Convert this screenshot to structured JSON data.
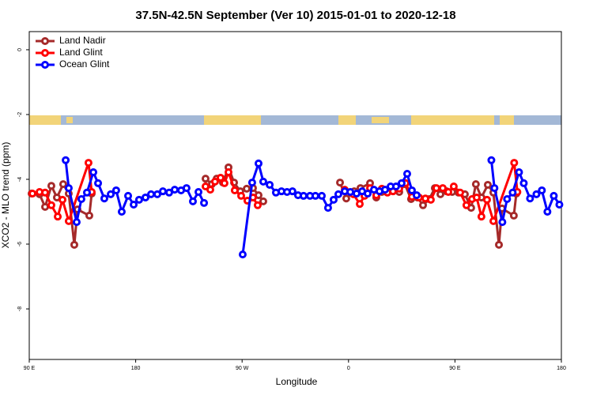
{
  "chart_data": {
    "type": "line",
    "title": "37.5N-42.5N September (Ver 10)   2015-01-01 to 2020-12-18",
    "x_label": "Longitude",
    "y_label": "XCO2 - MLO trend (ppm)",
    "xlim": [
      90,
      540
    ],
    "ylim": [
      -9.56,
      0.56
    ],
    "xticks": [
      {
        "value": 90,
        "label": "90 E"
      },
      {
        "value": 180,
        "label": "180"
      },
      {
        "value": 270,
        "label": "90 W"
      },
      {
        "value": 360,
        "label": "0"
      },
      {
        "value": 450,
        "label": "90 E"
      },
      {
        "value": 540,
        "label": "180"
      }
    ],
    "yticks": [
      0,
      -2,
      -4,
      -6,
      -8
    ],
    "legend": "top-left",
    "series": [
      {
        "name": "Land Nadir",
        "color": "#a52a2a",
        "x": [
          92.0,
          98.7,
          103.4,
          108.7,
          113.4,
          118.7,
          123.4,
          128.1,
          130.8,
          140.8,
          142.8,
          null,
          239.1,
          244.4,
          248.5,
          253.8,
          258.5,
          263.2,
          268.5,
          273.9,
          279.2,
          283.9,
          287.9,
          null,
          352.8,
          358.1,
          364.8,
          370.1,
          378.2,
          383.5,
          388.2,
          392.9,
          397.6,
          402.9,
          407.6,
          412.9,
          418.3,
          423.0,
          428.3,
          433.0,
          437.7,
          443.0,
          447.7,
          453.0,
          458.4,
          463.7,
          467.7,
          472.4,
          477.8,
          482.5,
          487.2,
          489.8,
          499.8,
          501.9
        ],
        "values": [
          -4.44,
          -4.46,
          -4.85,
          -4.2,
          -4.56,
          -4.15,
          -4.44,
          -6.02,
          -4.93,
          -5.12,
          -4.44,
          null,
          -3.98,
          -4.15,
          -3.98,
          -4.1,
          -3.63,
          -4.1,
          -4.37,
          -4.29,
          -4.27,
          -4.49,
          -4.68,
          null,
          -4.1,
          -4.59,
          -4.37,
          -4.27,
          -4.12,
          -4.56,
          -4.39,
          -4.34,
          -4.32,
          -4.39,
          -4.15,
          -4.61,
          -4.56,
          -4.8,
          -4.61,
          -4.27,
          -4.46,
          -4.37,
          -4.39,
          -4.41,
          -4.46,
          -4.88,
          -4.15,
          -4.56,
          -4.17,
          -4.41,
          -6.02,
          -4.9,
          -5.12,
          -4.44
        ]
      },
      {
        "name": "Land Glint",
        "color": "#ff0000",
        "x": [
          92.7,
          98.7,
          103.4,
          108.7,
          114.1,
          118.1,
          123.4,
          140.1,
          142.8,
          null,
          239.1,
          243.1,
          247.1,
          251.8,
          255.1,
          258.5,
          263.8,
          269.2,
          274.5,
          279.2,
          283.2,
          null,
          356.8,
          364.1,
          369.5,
          373.5,
          378.2,
          383.5,
          388.2,
          392.9,
          397.6,
          402.9,
          408.3,
          413.6,
          419.6,
          425.0,
          429.6,
          434.3,
          439.7,
          444.4,
          449.0,
          454.4,
          459.7,
          464.4,
          468.4,
          472.4,
          477.1,
          482.5,
          500.1,
          502.8
        ],
        "values": [
          -4.44,
          -4.39,
          -4.41,
          -4.8,
          -5.15,
          -4.63,
          -5.29,
          -3.49,
          -4.39,
          null,
          -4.22,
          -4.32,
          -4.07,
          -3.95,
          -4.12,
          -3.78,
          -4.34,
          -4.51,
          -4.66,
          -4.56,
          -4.8,
          null,
          -4.32,
          -4.46,
          -4.76,
          -4.51,
          -4.27,
          -4.49,
          -4.29,
          -4.41,
          -4.37,
          -4.29,
          -4.12,
          -4.54,
          -4.56,
          -4.59,
          -4.63,
          -4.27,
          -4.27,
          -4.39,
          -4.22,
          -4.41,
          -4.8,
          -4.61,
          -4.56,
          -5.15,
          -4.63,
          -5.29,
          -3.49,
          -4.39
        ]
      },
      {
        "name": "Ocean Glint",
        "color": "#0000ff",
        "x": [
          120.8,
          123.4,
          130.1,
          134.1,
          138.8,
          144.2,
          148.2,
          153.5,
          158.9,
          163.5,
          168.2,
          173.6,
          178.3,
          182.9,
          188.3,
          193.0,
          198.3,
          203.0,
          208.3,
          213.0,
          218.4,
          223.0,
          228.4,
          233.1,
          237.8,
          null,
          270.5,
          278.5,
          283.9,
          287.9,
          293.3,
          298.6,
          303.3,
          308.0,
          312.6,
          317.3,
          322.0,
          327.4,
          332.0,
          337.4,
          342.7,
          347.4,
          351.4,
          356.8,
          361.5,
          366.8,
          371.5,
          376.2,
          381.5,
          386.2,
          390.9,
          395.6,
          400.2,
          404.9,
          409.6,
          413.6,
          417.6,
          null,
          480.8,
          483.4,
          490.1,
          494.1,
          498.8,
          504.2,
          508.2,
          513.5,
          518.9,
          523.5,
          528.2,
          533.6,
          538.3
        ],
        "values": [
          -3.41,
          -4.27,
          -5.32,
          -4.61,
          -4.41,
          -3.78,
          -4.12,
          -4.59,
          -4.46,
          -4.34,
          -5.0,
          -4.51,
          -4.78,
          -4.63,
          -4.56,
          -4.46,
          -4.46,
          -4.37,
          -4.41,
          -4.32,
          -4.34,
          -4.27,
          -4.68,
          -4.39,
          -4.73,
          null,
          -6.32,
          -4.1,
          -3.51,
          -4.07,
          -4.17,
          -4.41,
          -4.37,
          -4.39,
          -4.37,
          -4.49,
          -4.51,
          -4.51,
          -4.51,
          -4.51,
          -4.88,
          -4.63,
          -4.46,
          -4.37,
          -4.39,
          -4.44,
          -4.37,
          -4.44,
          -4.32,
          -4.37,
          -4.32,
          -4.22,
          -4.22,
          -4.12,
          -3.83,
          -4.34,
          -4.49,
          null,
          -3.41,
          -4.27,
          -5.32,
          -4.61,
          -4.41,
          -3.78,
          -4.12,
          -4.59,
          -4.46,
          -4.34,
          -5.0,
          -4.51,
          -4.78
        ]
      }
    ]
  }
}
